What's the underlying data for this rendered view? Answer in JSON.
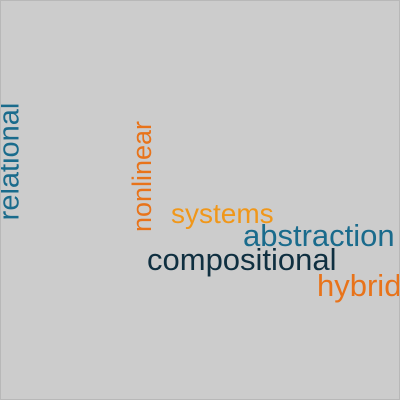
{
  "background_color": "#cccccc",
  "words": [
    {
      "text": "relational",
      "color": "#1a6b8c"
    },
    {
      "text": "nonlinear",
      "color": "#e8731a"
    },
    {
      "text": "systems",
      "color": "#f0971a"
    },
    {
      "text": "abstraction",
      "color": "#1a6b8c"
    },
    {
      "text": "compositional",
      "color": "#0f2f40"
    },
    {
      "text": "hybrid",
      "color": "#e8731a"
    }
  ]
}
